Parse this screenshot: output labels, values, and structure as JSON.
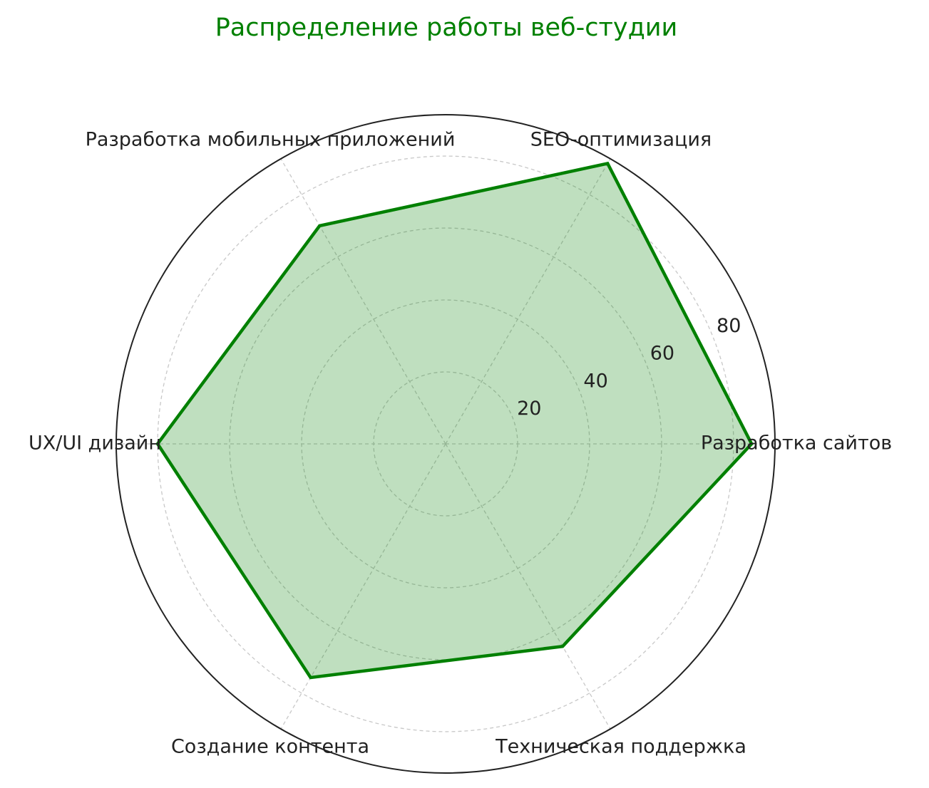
{
  "chart_data": {
    "type": "radar",
    "title": "Распределение работы веб-студии",
    "categories": [
      "Разработка сайтов",
      "SEO-оптимизация",
      "Разработка мобильных приложений",
      "UX/UI дизайн",
      "Создание контента",
      "Техническая поддержка"
    ],
    "values": [
      85,
      90,
      70,
      80,
      75,
      65
    ],
    "color": "#008000",
    "title_color": "#008000",
    "ylim": [
      0,
      91.5
    ],
    "yticks": [
      20,
      40,
      60,
      80
    ],
    "grid": true
  }
}
